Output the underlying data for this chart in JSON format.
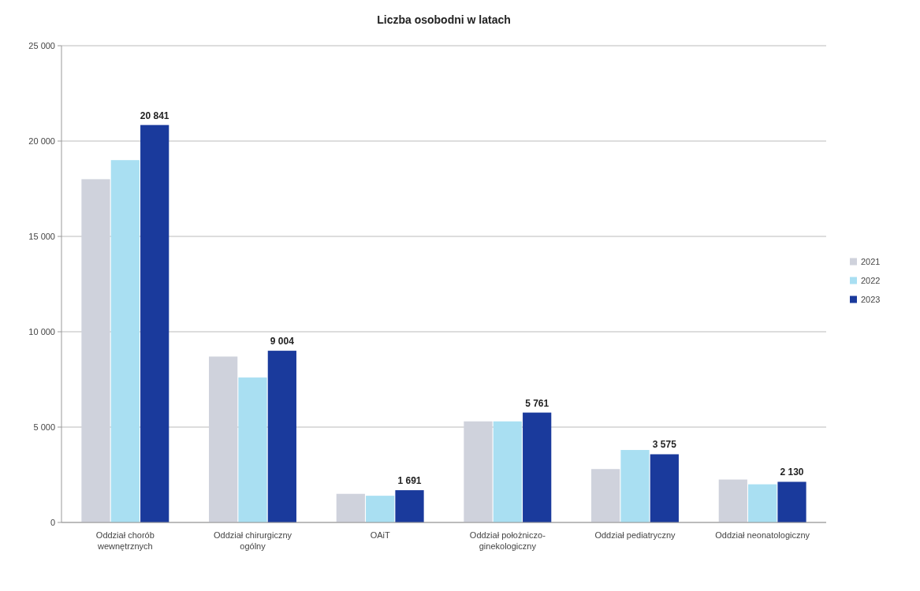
{
  "chart_data": {
    "type": "bar",
    "title": "Liczba osobodni w latach",
    "categories": [
      "Oddział chorób wewnętrznych",
      "Oddział chirurgiczny ogólny",
      "OAiT",
      "Oddział położniczo-ginekologiczny",
      "Oddział pediatryczny",
      "Oddział neonatologiczny"
    ],
    "series": [
      {
        "name": "2021",
        "color": "#cfd2dc",
        "values": [
          18000,
          8700,
          1500,
          5300,
          2800,
          2250
        ]
      },
      {
        "name": "2022",
        "color": "#a9dff2",
        "values": [
          19000,
          7600,
          1400,
          5300,
          3800,
          2000
        ]
      },
      {
        "name": "2023",
        "color": "#1a3a9c",
        "values": [
          20841,
          9004,
          1691,
          5761,
          3575,
          2130
        ],
        "value_labels": [
          "20 841",
          "9 004",
          "1 691",
          "5 761",
          "3 575",
          "2 130"
        ]
      }
    ],
    "ylim": [
      0,
      25000
    ],
    "yticks": [
      {
        "value": 0,
        "label": "0"
      },
      {
        "value": 5000,
        "label": "5 000"
      },
      {
        "value": 10000,
        "label": "10 000"
      },
      {
        "value": 15000,
        "label": "15 000"
      },
      {
        "value": 20000,
        "label": "20 000"
      },
      {
        "value": 25000,
        "label": "25 000"
      }
    ],
    "grid": "y",
    "legend": "right"
  }
}
